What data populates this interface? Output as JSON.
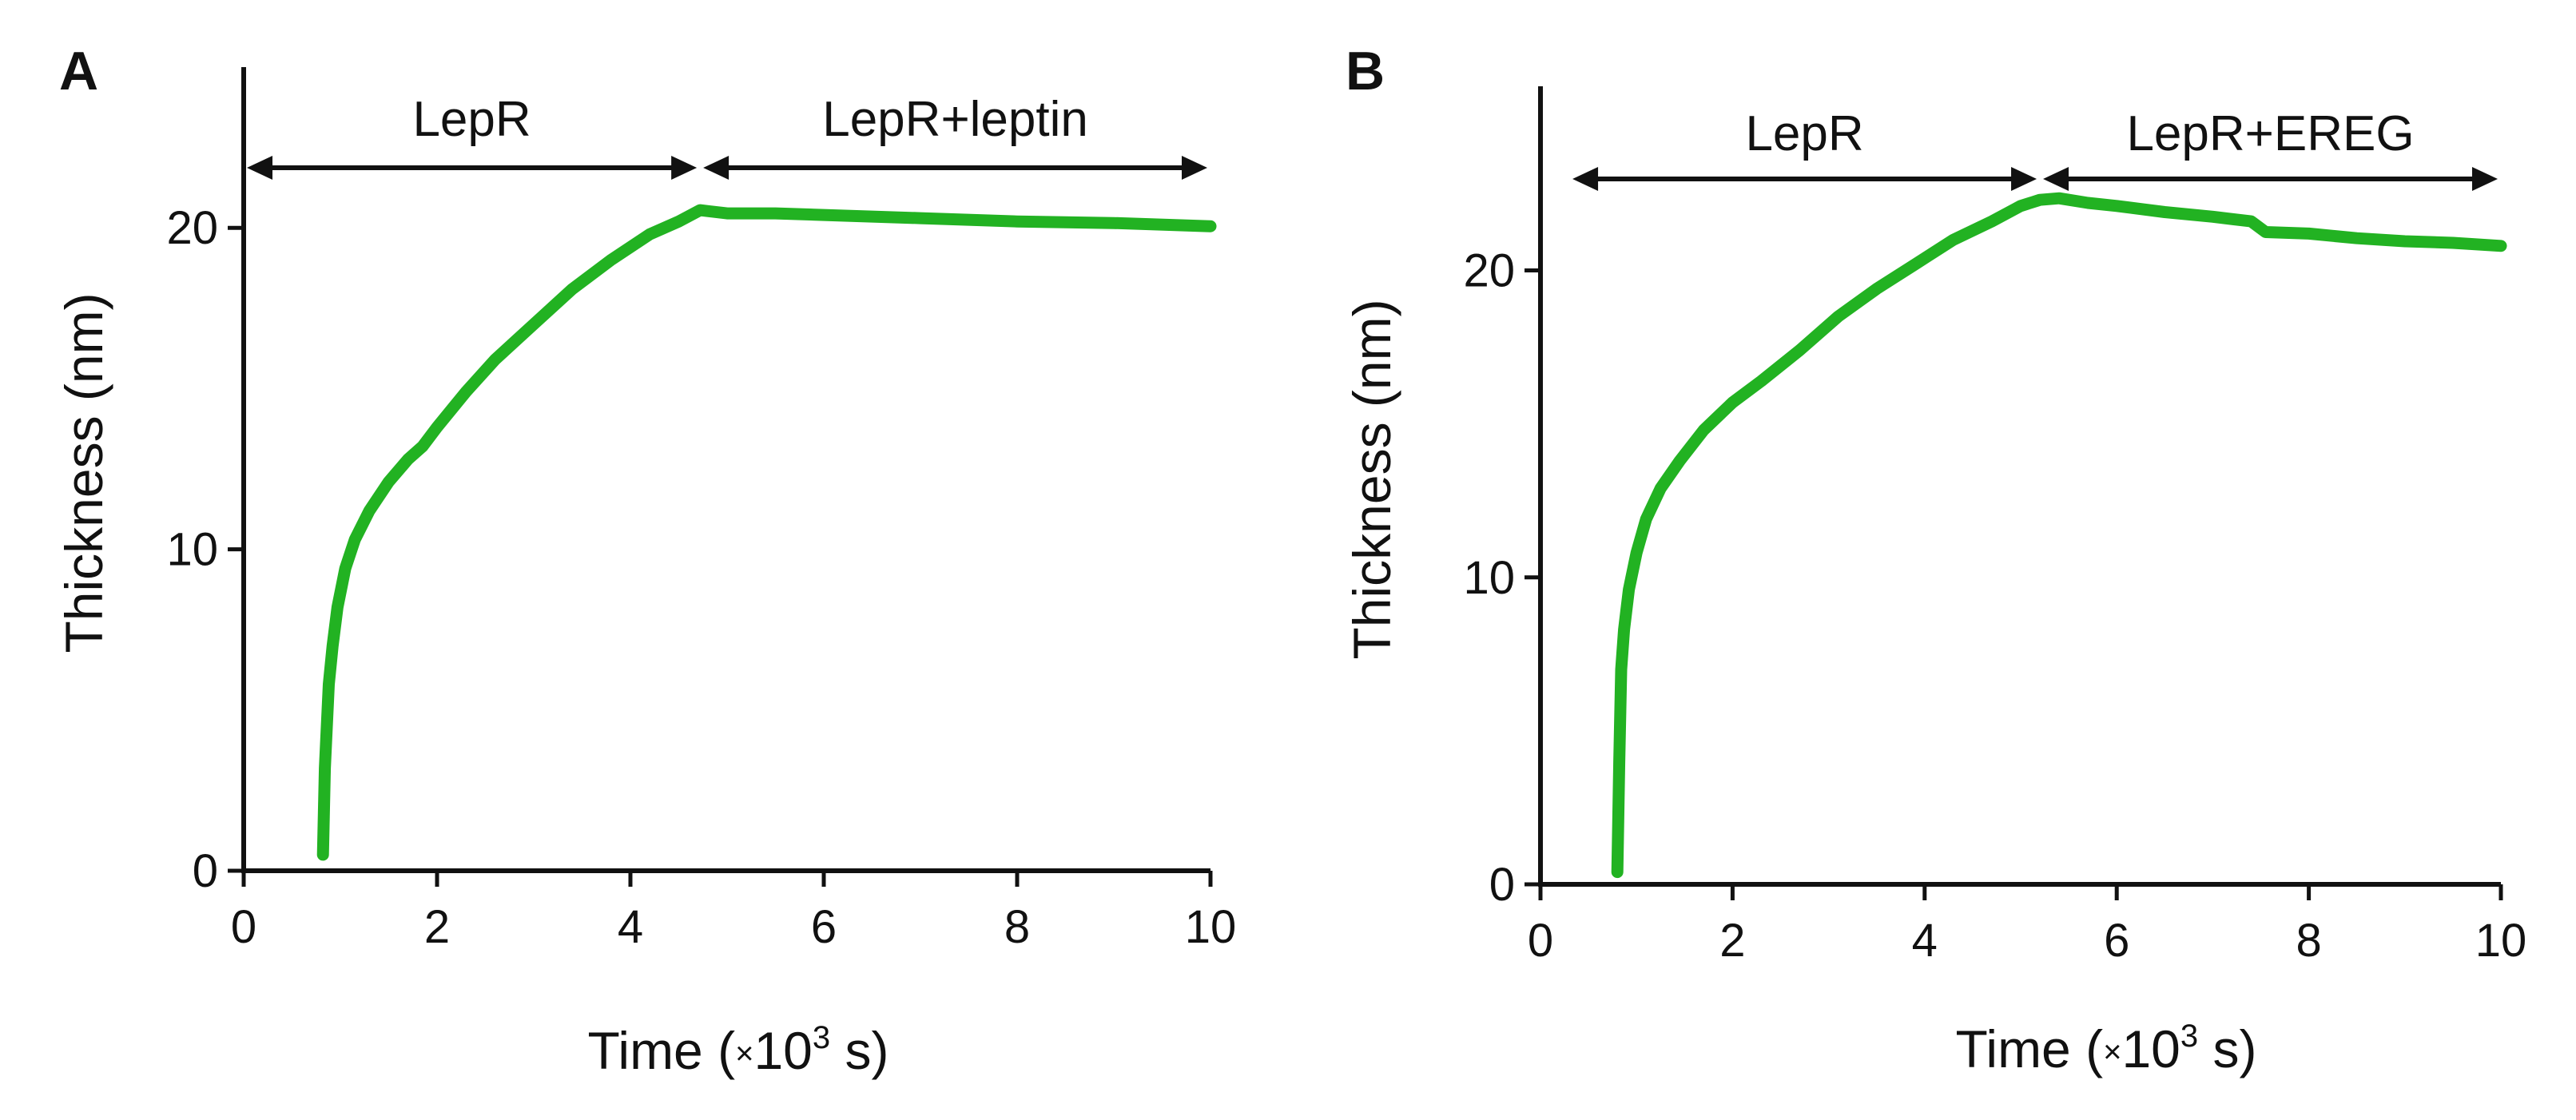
{
  "series_color": "#22b222",
  "chart_data": [
    {
      "type": "line",
      "panel_label": "A",
      "xlabel_main": "Time (",
      "xlabel_mult": "×",
      "xlabel_base": "10",
      "xlabel_exp": "3",
      "xlabel_unit": " s)",
      "ylabel": "Thickness (nm)",
      "xlim": [
        0,
        10
      ],
      "ylim": [
        0,
        25
      ],
      "xticks": [
        0,
        2,
        4,
        6,
        8,
        10
      ],
      "yticks": [
        0,
        10,
        20
      ],
      "regions": [
        {
          "label": "LepR",
          "x_start": 0,
          "x_end": 4.72
        },
        {
          "label": "LepR+leptin",
          "x_start": 4.72,
          "x_end": 10
        }
      ],
      "series": [
        {
          "name": "Thickness",
          "x": [
            0.82,
            0.84,
            0.88,
            0.92,
            0.97,
            1.05,
            1.15,
            1.3,
            1.5,
            1.7,
            1.85,
            2.0,
            2.3,
            2.6,
            3.0,
            3.4,
            3.8,
            4.2,
            4.5,
            4.72,
            5.0,
            5.5,
            6.0,
            7.0,
            8.0,
            9.0,
            10.0
          ],
          "y": [
            0.5,
            3.2,
            5.8,
            7.0,
            8.2,
            9.4,
            10.3,
            11.2,
            12.1,
            12.8,
            13.2,
            13.8,
            14.9,
            15.9,
            17.0,
            18.1,
            19.0,
            19.8,
            20.2,
            20.55,
            20.45,
            20.45,
            20.4,
            20.3,
            20.2,
            20.15,
            20.05
          ]
        }
      ]
    },
    {
      "type": "line",
      "panel_label": "B",
      "xlabel_main": "Time (",
      "xlabel_mult": "×",
      "xlabel_base": "10",
      "xlabel_exp": "3",
      "xlabel_unit": " s)",
      "ylabel": "Thickness (nm)",
      "xlim": [
        0,
        10
      ],
      "ylim": [
        0,
        26
      ],
      "xticks": [
        0,
        2,
        4,
        6,
        8,
        10
      ],
      "yticks": [
        0,
        10,
        20
      ],
      "regions": [
        {
          "label": "LepR",
          "x_start": 0.3,
          "x_end": 5.2
        },
        {
          "label": "LepR+EREG",
          "x_start": 5.2,
          "x_end": 10
        }
      ],
      "series": [
        {
          "name": "Thickness",
          "x": [
            0.8,
            0.82,
            0.84,
            0.87,
            0.92,
            1.0,
            1.1,
            1.25,
            1.45,
            1.7,
            2.0,
            2.3,
            2.7,
            3.1,
            3.5,
            3.9,
            4.3,
            4.7,
            5.0,
            5.2,
            5.4,
            5.7,
            6.0,
            6.5,
            7.0,
            7.4,
            7.55,
            8.0,
            8.5,
            9.0,
            9.5,
            10.0
          ],
          "y": [
            0.4,
            4.0,
            7.0,
            8.3,
            9.6,
            10.8,
            11.9,
            12.9,
            13.8,
            14.8,
            15.7,
            16.4,
            17.4,
            18.5,
            19.4,
            20.2,
            21.0,
            21.6,
            22.1,
            22.3,
            22.35,
            22.2,
            22.1,
            21.9,
            21.75,
            21.6,
            21.25,
            21.2,
            21.05,
            20.95,
            20.9,
            20.8
          ]
        }
      ]
    }
  ]
}
